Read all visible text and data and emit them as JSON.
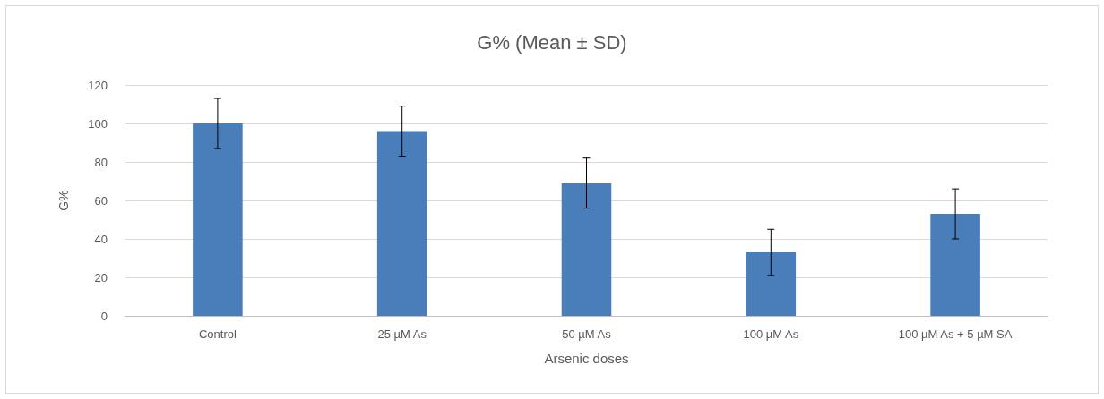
{
  "chart_data": {
    "type": "bar",
    "title": "G% (Mean ± SD)",
    "xlabel": "Arsenic doses",
    "ylabel": "G%",
    "categories": [
      "Control",
      "25 µM As",
      "50 µM As",
      "100 µM As",
      "100 µM As + 5 µM SA"
    ],
    "values": [
      100,
      96,
      69,
      33,
      53
    ],
    "errors": [
      13,
      13,
      13,
      12,
      13
    ],
    "color": "#4a7ebb",
    "ylim": [
      0,
      120
    ],
    "yticks": [
      0,
      20,
      40,
      60,
      80,
      100,
      120
    ],
    "grid": "y"
  }
}
